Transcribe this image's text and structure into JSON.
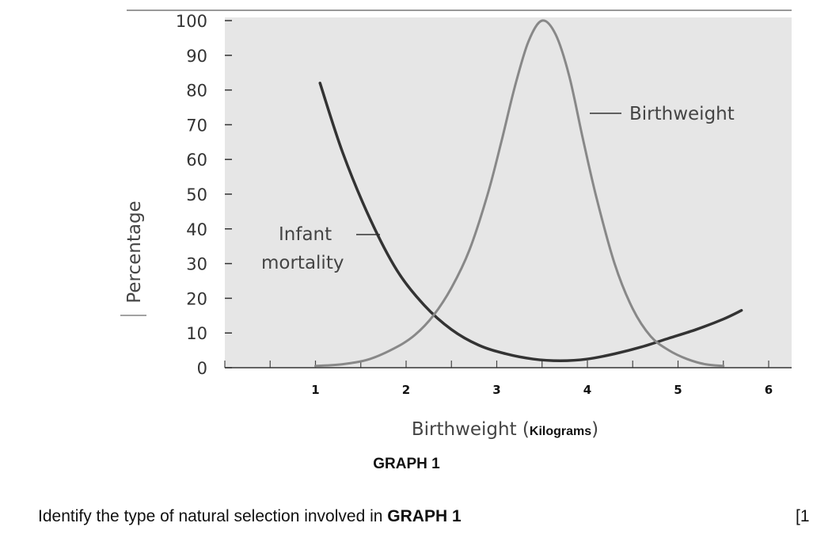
{
  "chart_data": {
    "type": "line",
    "xlabel": "Birthweight",
    "xlabel_unit": "Kilograms",
    "ylabel": "Percentage",
    "ylim": [
      0,
      100
    ],
    "xlim": [
      0,
      6
    ],
    "y_ticks": [
      "0",
      "10",
      "20",
      "30",
      "40",
      "50",
      "60",
      "70",
      "80",
      "90",
      "100"
    ],
    "x_ticks": [
      "1",
      "2",
      "3",
      "4",
      "5",
      "6"
    ],
    "grid": false,
    "background": "#e6e6e6",
    "series": [
      {
        "name": "Infant mortality",
        "color": "#333333",
        "x": [
          1.05,
          1.3,
          1.6,
          1.9,
          2.2,
          2.5,
          2.8,
          3.1,
          3.4,
          3.7,
          4.0,
          4.3,
          4.6,
          4.9,
          5.2,
          5.5,
          5.7
        ],
        "y": [
          82,
          62,
          43,
          28,
          18,
          11,
          6.5,
          4,
          2.5,
          2,
          2.5,
          4,
          6,
          8.5,
          11,
          14,
          16.5
        ]
      },
      {
        "name": "Birthweight",
        "color": "#888888",
        "x": [
          1.0,
          1.3,
          1.6,
          1.9,
          2.1,
          2.3,
          2.5,
          2.7,
          2.9,
          3.05,
          3.2,
          3.35,
          3.5,
          3.65,
          3.8,
          3.95,
          4.1,
          4.3,
          4.5,
          4.7,
          4.9,
          5.1,
          5.3,
          5.5
        ],
        "y": [
          0.5,
          1,
          2.5,
          6,
          9.5,
          15,
          23,
          34,
          50,
          65,
          81,
          94,
          100,
          96,
          84,
          66,
          49,
          30,
          17,
          9,
          5,
          2.5,
          1,
          0.5
        ]
      }
    ],
    "annotations": [
      {
        "text": "Birthweight"
      },
      {
        "lines": [
          "Infant",
          "mortality"
        ]
      }
    ],
    "caption": "GRAPH 1"
  },
  "question": {
    "text_before": "Identify the type of natural selection involved in ",
    "emphasis": "GRAPH 1",
    "marks": "[1"
  }
}
